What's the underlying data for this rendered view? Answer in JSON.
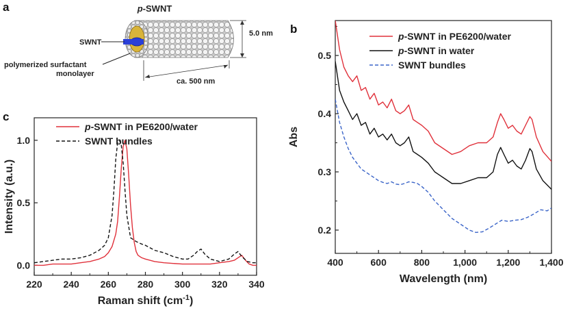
{
  "panels": {
    "a": {
      "letter": "a",
      "title_prefix": "p",
      "title_suffix": "-SWNT",
      "label_swnt": "SWNT",
      "label_surfactant_1": "polymerized surfactant",
      "label_surfactant_2": "monolayer",
      "diameter_label": "5.0 nm",
      "length_label": "ca. 500 nm"
    },
    "b": {
      "letter": "b"
    },
    "c": {
      "letter": "c"
    }
  },
  "chart_data": [
    {
      "id": "raman",
      "type": "line",
      "xlabel": "Raman shift (cm-1)",
      "xlabel_main": "Raman shift (cm",
      "xlabel_sup": "-1",
      "xlabel_close": ")",
      "ylabel": "Intensity (a.u.)",
      "xlim": [
        220,
        340
      ],
      "ylim": [
        -0.08,
        1.18
      ],
      "xticks": [
        220,
        240,
        260,
        280,
        300,
        320,
        340
      ],
      "yticks": [
        0.0,
        0.5,
        1.0
      ],
      "ytick_labels": [
        "0.0",
        "0.5",
        "1.0"
      ],
      "legend_position": "top-left",
      "series": [
        {
          "name": "p-SWNT in PE6200/water",
          "name_prefix": "p",
          "name_suffix": "-SWNT in PE6200/water",
          "color": "#e0303a",
          "dash": "solid",
          "x": [
            220,
            225,
            230,
            235,
            240,
            245,
            250,
            255,
            258,
            260,
            262,
            264,
            265,
            266,
            267,
            268,
            269,
            270,
            271,
            272,
            273,
            274,
            275,
            276,
            278,
            280,
            285,
            290,
            295,
            300,
            305,
            310,
            315,
            320,
            325,
            328,
            330,
            332,
            334,
            336,
            338,
            340
          ],
          "y": [
            0.0,
            0.0,
            0.01,
            0.01,
            0.01,
            0.02,
            0.03,
            0.05,
            0.07,
            0.1,
            0.15,
            0.25,
            0.35,
            0.55,
            0.78,
            0.95,
            1.0,
            0.93,
            0.72,
            0.48,
            0.3,
            0.18,
            0.11,
            0.08,
            0.06,
            0.05,
            0.03,
            0.02,
            0.015,
            0.01,
            0.01,
            0.01,
            0.01,
            0.02,
            0.03,
            0.04,
            0.06,
            0.08,
            0.04,
            0.01,
            0.0,
            0.0
          ]
        },
        {
          "name": "SWNT bundles",
          "color": "#111111",
          "dash": "dashed",
          "x": [
            220,
            225,
            230,
            235,
            240,
            245,
            250,
            255,
            258,
            260,
            262,
            263,
            264,
            265,
            266,
            267,
            268,
            269,
            270,
            272,
            275,
            278,
            280,
            285,
            290,
            295,
            300,
            303,
            306,
            308,
            310,
            312,
            315,
            320,
            325,
            328,
            330,
            332,
            335,
            338,
            340
          ],
          "y": [
            0.02,
            0.03,
            0.04,
            0.05,
            0.05,
            0.06,
            0.08,
            0.12,
            0.16,
            0.22,
            0.4,
            0.6,
            0.85,
            0.98,
            1.0,
            0.96,
            0.82,
            0.6,
            0.4,
            0.22,
            0.19,
            0.17,
            0.16,
            0.12,
            0.1,
            0.07,
            0.05,
            0.05,
            0.08,
            0.11,
            0.13,
            0.09,
            0.05,
            0.03,
            0.05,
            0.09,
            0.11,
            0.07,
            0.03,
            0.02,
            0.02
          ]
        }
      ]
    },
    {
      "id": "absorbance",
      "type": "line",
      "xlabel": "Wavelength (nm)",
      "ylabel": "Abs",
      "xlim": [
        400,
        1400
      ],
      "ylim": [
        0.16,
        0.56
      ],
      "xticks": [
        400,
        600,
        800,
        1000,
        1200,
        1400
      ],
      "xtick_labels": [
        "400",
        "600",
        "800",
        "1,000",
        "1,200",
        "1,400"
      ],
      "yticks": [
        0.2,
        0.3,
        0.4,
        0.5
      ],
      "ytick_labels": [
        "0.2",
        "0.3",
        "0.4",
        "0.5"
      ],
      "legend_position": "top-right",
      "series": [
        {
          "name": "p-SWNT in PE6200/water",
          "name_prefix": "p",
          "name_suffix": "-SWNT in PE6200/water",
          "color": "#e0303a",
          "dash": "solid",
          "x": [
            400,
            420,
            440,
            460,
            480,
            500,
            520,
            540,
            560,
            580,
            600,
            620,
            640,
            660,
            680,
            700,
            720,
            740,
            760,
            780,
            800,
            830,
            860,
            900,
            940,
            980,
            1020,
            1060,
            1100,
            1130,
            1150,
            1165,
            1180,
            1200,
            1220,
            1240,
            1260,
            1280,
            1300,
            1310,
            1330,
            1360,
            1400
          ],
          "y": [
            0.56,
            0.51,
            0.48,
            0.465,
            0.455,
            0.465,
            0.44,
            0.445,
            0.425,
            0.435,
            0.415,
            0.42,
            0.41,
            0.425,
            0.405,
            0.4,
            0.405,
            0.415,
            0.39,
            0.385,
            0.38,
            0.37,
            0.35,
            0.34,
            0.33,
            0.335,
            0.345,
            0.35,
            0.35,
            0.36,
            0.385,
            0.4,
            0.39,
            0.375,
            0.38,
            0.37,
            0.365,
            0.38,
            0.395,
            0.39,
            0.36,
            0.335,
            0.318
          ]
        },
        {
          "name": "p-SWNT in water",
          "name_prefix": "p",
          "name_suffix": "-SWNT in water",
          "color": "#111111",
          "dash": "solid",
          "x": [
            400,
            420,
            440,
            460,
            480,
            500,
            520,
            540,
            560,
            580,
            600,
            620,
            640,
            660,
            680,
            700,
            720,
            740,
            760,
            780,
            800,
            830,
            860,
            900,
            940,
            980,
            1020,
            1060,
            1100,
            1130,
            1150,
            1165,
            1180,
            1200,
            1220,
            1240,
            1260,
            1280,
            1300,
            1310,
            1330,
            1360,
            1400
          ],
          "y": [
            0.49,
            0.44,
            0.42,
            0.405,
            0.39,
            0.4,
            0.38,
            0.385,
            0.365,
            0.375,
            0.36,
            0.365,
            0.355,
            0.365,
            0.35,
            0.345,
            0.35,
            0.36,
            0.335,
            0.33,
            0.325,
            0.315,
            0.3,
            0.29,
            0.28,
            0.28,
            0.285,
            0.29,
            0.29,
            0.3,
            0.33,
            0.342,
            0.33,
            0.315,
            0.32,
            0.31,
            0.305,
            0.32,
            0.34,
            0.335,
            0.305,
            0.285,
            0.27
          ]
        },
        {
          "name": "SWNT bundles",
          "color": "#3a64c8",
          "dash": "dashed",
          "x": [
            400,
            420,
            440,
            460,
            480,
            500,
            520,
            540,
            560,
            580,
            600,
            620,
            640,
            660,
            680,
            700,
            720,
            740,
            760,
            780,
            800,
            830,
            860,
            900,
            940,
            980,
            1020,
            1050,
            1080,
            1110,
            1140,
            1170,
            1200,
            1230,
            1260,
            1290,
            1320,
            1350,
            1380,
            1400
          ],
          "y": [
            0.425,
            0.385,
            0.36,
            0.34,
            0.325,
            0.315,
            0.305,
            0.3,
            0.295,
            0.29,
            0.285,
            0.282,
            0.28,
            0.283,
            0.279,
            0.278,
            0.28,
            0.283,
            0.282,
            0.28,
            0.275,
            0.265,
            0.25,
            0.235,
            0.22,
            0.21,
            0.2,
            0.196,
            0.197,
            0.203,
            0.21,
            0.217,
            0.215,
            0.217,
            0.218,
            0.222,
            0.228,
            0.235,
            0.233,
            0.238
          ]
        }
      ]
    }
  ]
}
